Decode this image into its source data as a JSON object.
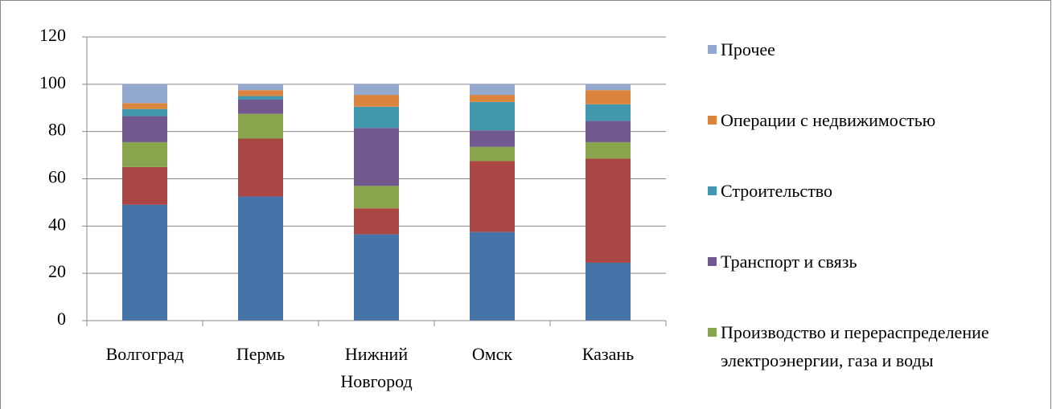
{
  "chart_data": {
    "type": "stacked_bar",
    "categories": [
      "Волгоград",
      "Пермь",
      "Нижний Новгород",
      "Омск",
      "Казань"
    ],
    "series": [
      {
        "color": "#4572a7",
        "values": [
          49,
          52.5,
          36.5,
          37.5,
          24.5
        ]
      },
      {
        "color": "#aa4643",
        "values": [
          16,
          24.5,
          11,
          30,
          44
        ]
      },
      {
        "name": "Производство и перераспределение электроэнергии, газа и воды",
        "color": "#89a54e",
        "values": [
          10.5,
          10.5,
          9.5,
          6,
          7
        ]
      },
      {
        "name": "Транспорт и связь",
        "color": "#71588f",
        "values": [
          11,
          6,
          24.5,
          7,
          9
        ]
      },
      {
        "name": "Строительство",
        "color": "#4198af",
        "values": [
          3,
          1.5,
          9,
          12,
          7
        ]
      },
      {
        "name": "Операции с недвижимостью",
        "color": "#db843d",
        "values": [
          2.5,
          2.5,
          5,
          3,
          6
        ]
      },
      {
        "name": "Прочее",
        "color": "#93a9cf",
        "values": [
          8,
          2.5,
          4.5,
          4.5,
          2.5
        ]
      }
    ],
    "ylim": [
      0,
      120
    ],
    "yticks": [
      0,
      20,
      40,
      60,
      80,
      100,
      120
    ],
    "grid": true
  }
}
